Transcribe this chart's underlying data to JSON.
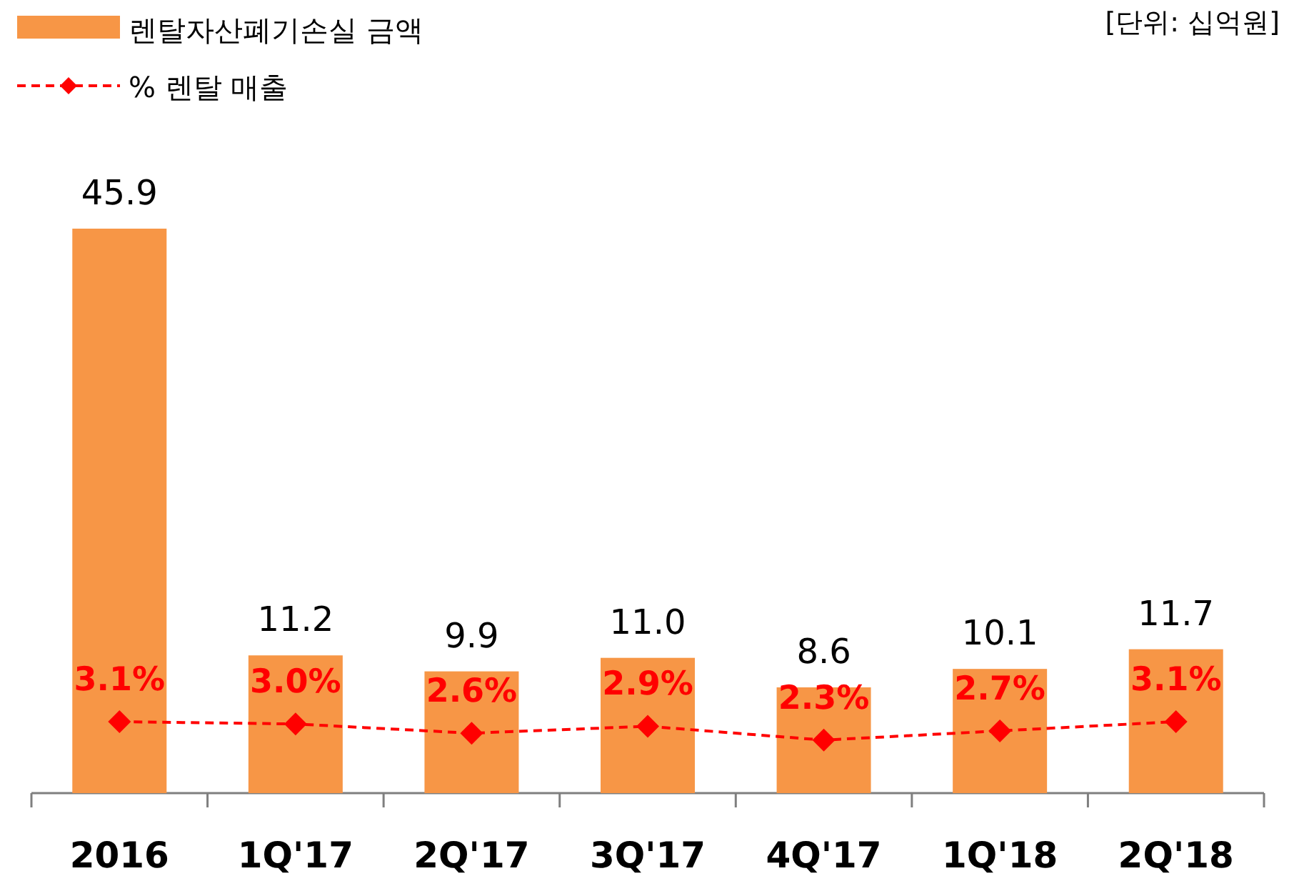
{
  "chart_data": {
    "type": "bar",
    "categories": [
      "2016",
      "1Q'17",
      "2Q'17",
      "3Q'17",
      "4Q'17",
      "1Q'18",
      "2Q'18"
    ],
    "tick_labels": "x",
    "legend": "top left",
    "data_labels": true,
    "annotations": [
      "[단위: 십억원]"
    ],
    "series": [
      {
        "name": "렌탈자산폐기손실 금액",
        "color": "#f79646",
        "values": [
          45.9,
          11.2,
          9.9,
          11.0,
          8.6,
          10.1,
          11.7
        ],
        "value_labels": [
          "45.9",
          "11.2",
          "9.9",
          "11.0",
          "8.6",
          "10.1",
          "11.7"
        ]
      },
      {
        "name": "% 렌탈 매출",
        "type": "line",
        "axis": "y2",
        "color": "#ff0000",
        "marker": "diamond",
        "line_style": "dashed",
        "values": [
          3.1,
          3.0,
          2.6,
          2.9,
          2.3,
          2.7,
          3.1
        ],
        "value_labels": [
          "3.1%",
          "3.0%",
          "2.6%",
          "2.9%",
          "2.3%",
          "2.7%",
          "3.1%"
        ]
      }
    ]
  }
}
